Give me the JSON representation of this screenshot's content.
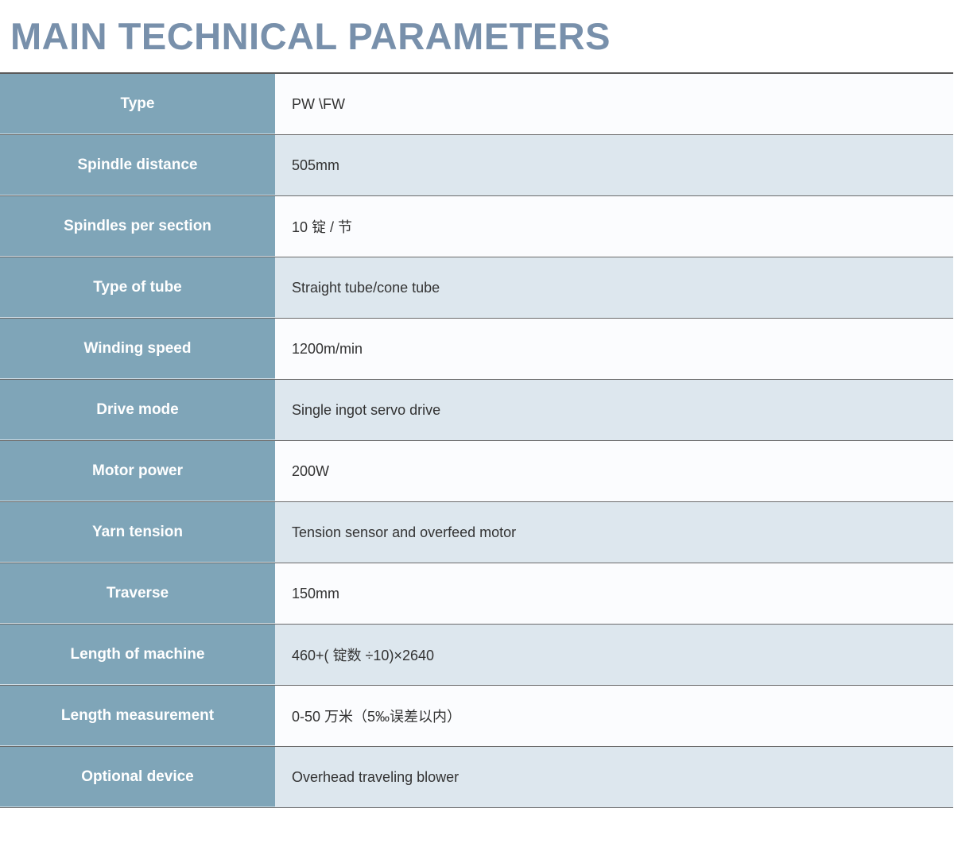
{
  "title": "MAIN TECHNICAL PARAMETERS",
  "rows": [
    {
      "label": "Type",
      "value": "PW \\FW"
    },
    {
      "label": "Spindle distance",
      "value": "505mm"
    },
    {
      "label": "Spindles per section",
      "value": "10 锭 / 节"
    },
    {
      "label": "Type of tube",
      "value": "Straight tube/cone tube"
    },
    {
      "label": "Winding speed",
      "value": "1200m/min"
    },
    {
      "label": "Drive mode",
      "value": "Single ingot servo drive"
    },
    {
      "label": "Motor power",
      "value": "200W"
    },
    {
      "label": "Yarn tension",
      "value": "Tension sensor and overfeed motor"
    },
    {
      "label": "Traverse",
      "value": "150mm"
    },
    {
      "label": "Length of machine",
      "value": "460+( 锭数 ÷10)×2640"
    },
    {
      "label": "Length measurement",
      "value": "0-50 万米（5‰误差以内）"
    },
    {
      "label": "Optional device",
      "value": "Overhead traveling blower"
    }
  ]
}
